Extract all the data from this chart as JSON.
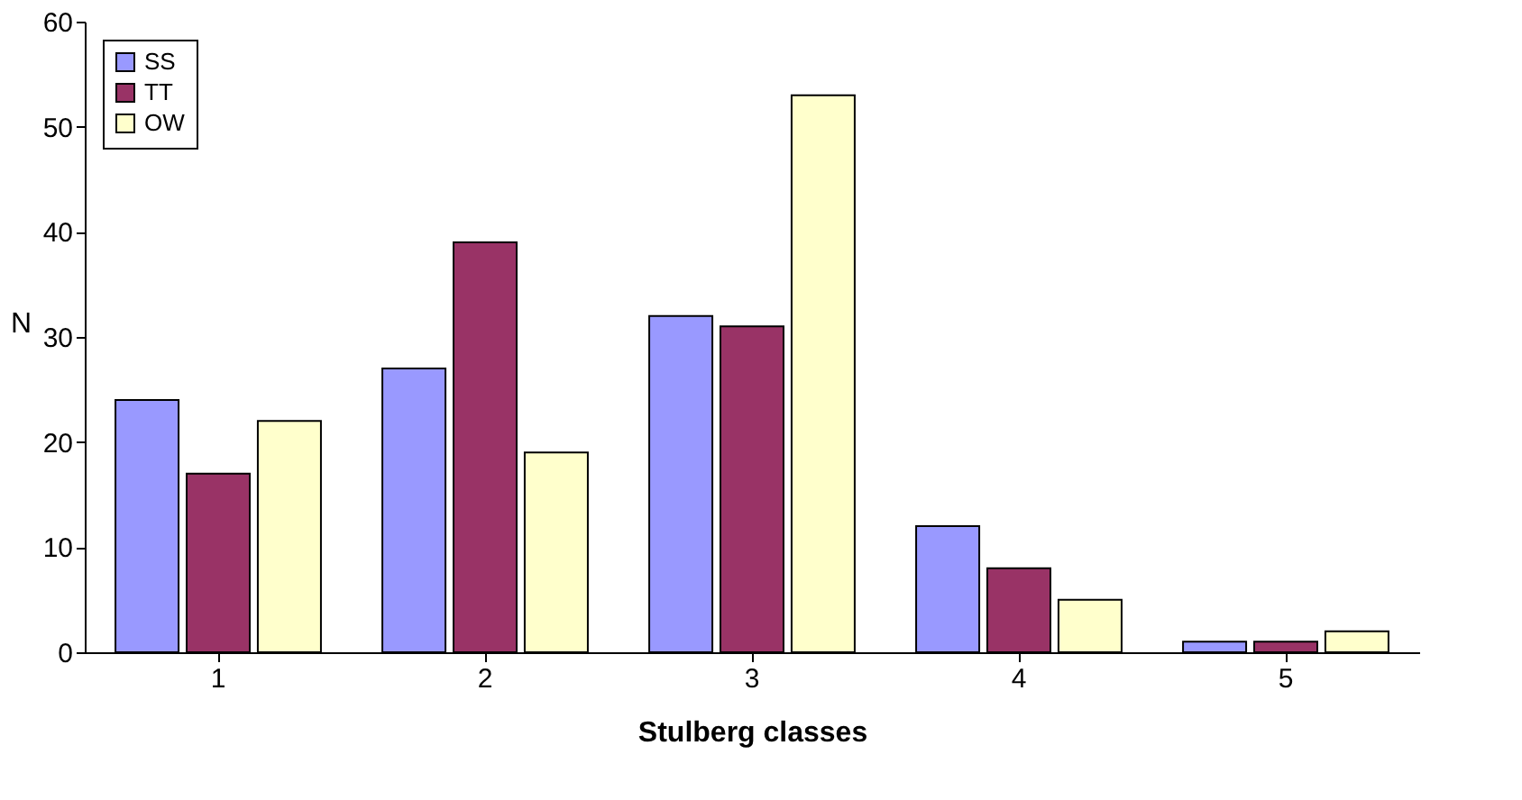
{
  "chart_data": {
    "type": "bar",
    "xlabel": "Stulberg classes",
    "ylabel": "N",
    "categories": [
      "1",
      "2",
      "3",
      "4",
      "5"
    ],
    "series": [
      {
        "name": "SS",
        "color": "#9999ff",
        "values": [
          24,
          27,
          32,
          12,
          1
        ]
      },
      {
        "name": "TT",
        "color": "#993366",
        "values": [
          17,
          39,
          31,
          8,
          1
        ]
      },
      {
        "name": "OW",
        "color": "#ffffcc",
        "values": [
          22,
          19,
          53,
          5,
          2
        ]
      }
    ],
    "ylim": [
      0,
      60
    ],
    "yticks": [
      0,
      10,
      20,
      30,
      40,
      50,
      60
    ],
    "grid": false,
    "legend": "top left"
  }
}
